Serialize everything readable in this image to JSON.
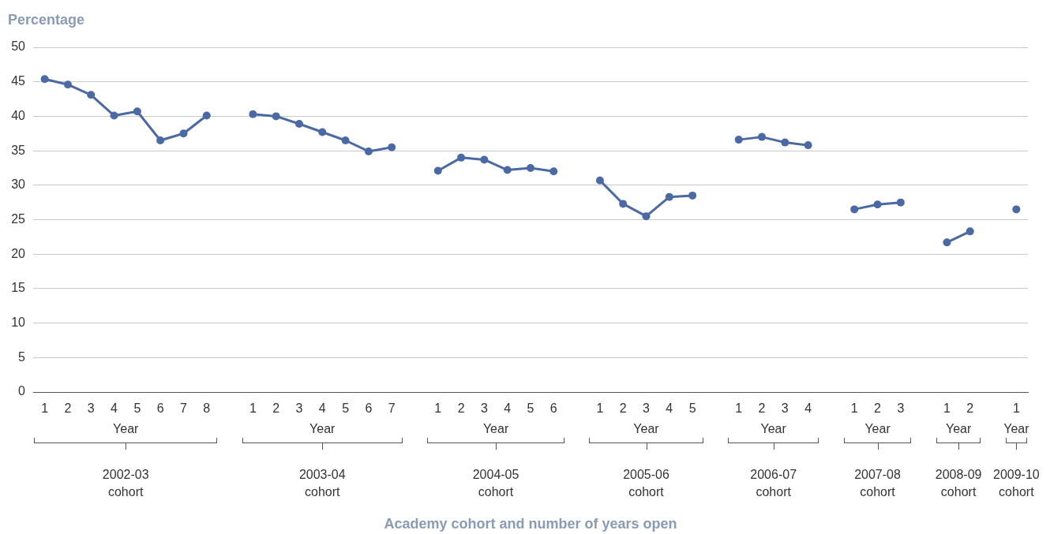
{
  "chart_data": {
    "type": "line",
    "ylabel": "Percentage",
    "categories": [
      "1",
      "2",
      "3",
      "4",
      "5",
      "6",
      "7",
      "8",
      null,
      "1",
      "2",
      "3",
      "4",
      "5",
      "6",
      "7",
      null,
      "1",
      "2",
      "3",
      "4",
      "5",
      "6",
      null,
      "1",
      "2",
      "3",
      "4",
      "5",
      null,
      "1",
      "2",
      "3",
      "4",
      null,
      "1",
      "2",
      "3",
      null,
      "1",
      "2",
      null,
      "1"
    ],
    "series": [
      {
        "color": "#4a69a5",
        "values": [
          45.4,
          44.6,
          43.1,
          40.1,
          40.7,
          36.5,
          37.5,
          40.1,
          null,
          40.3,
          40.0,
          38.9,
          37.7,
          36.5,
          34.9,
          35.5,
          null,
          32.1,
          34.0,
          33.7,
          32.2,
          32.5,
          32.0,
          null,
          30.7,
          27.3,
          25.5,
          28.3,
          28.5,
          null,
          36.6,
          37.0,
          36.2,
          35.8,
          null,
          26.5,
          27.2,
          27.5,
          null,
          21.7,
          23.3,
          null,
          26.5
        ]
      }
    ],
    "ylim": [
      0,
      50
    ],
    "yticks": [
      0,
      5,
      10,
      15,
      20,
      25,
      30,
      35,
      40,
      45,
      50
    ],
    "grid": "y",
    "marker": "circle",
    "line_style": "solid",
    "annotations": [
      "Year",
      "2002-03 cohort",
      "Year",
      "2003-04 cohort",
      "Year",
      "2004-05 cohort",
      "Year",
      "2005-06 cohort",
      "Year",
      "2006-07 cohort",
      "Year",
      "2007-08 cohort",
      "Year",
      "2008-09 cohort",
      "Year",
      "2009-10 cohort",
      "Academy cohort and number of years open"
    ]
  }
}
